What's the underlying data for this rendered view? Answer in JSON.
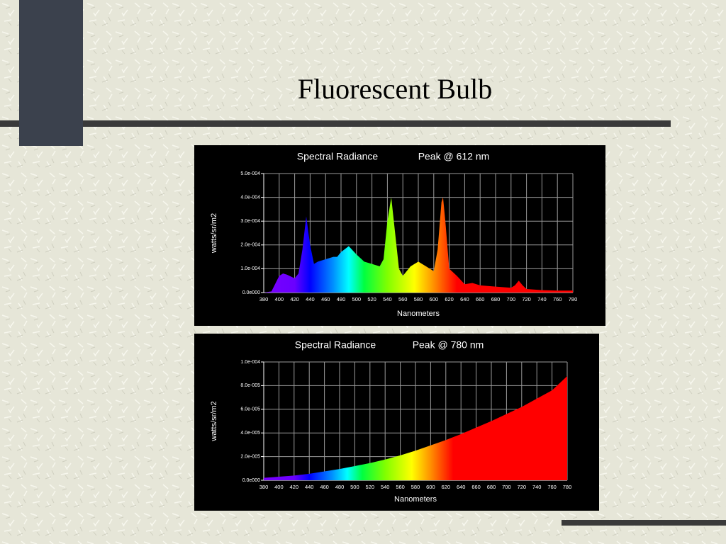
{
  "title": "Fluorescent Bulb",
  "chart_data": [
    {
      "type": "area",
      "title": "Spectral Radiance",
      "subtitle": "Peak @ 612 nm",
      "xlabel": "Nanometers",
      "ylabel": "watts/sr/m2",
      "x": [
        380,
        390,
        400,
        405,
        410,
        420,
        425,
        430,
        435,
        440,
        445,
        450,
        460,
        470,
        475,
        480,
        490,
        500,
        510,
        520,
        530,
        535,
        540,
        545,
        550,
        555,
        560,
        570,
        580,
        590,
        600,
        605,
        610,
        612,
        615,
        620,
        630,
        640,
        650,
        660,
        680,
        700,
        705,
        710,
        715,
        720,
        740,
        760,
        780
      ],
      "values": [
        0,
        5e-06,
        7e-05,
        8e-05,
        7.5e-05,
        6e-05,
        8e-05,
        0.00018,
        0.00032,
        0.0002,
        0.00012,
        0.00013,
        0.00014,
        0.00015,
        0.00015,
        0.00017,
        0.000195,
        0.00016,
        0.00013,
        0.00012,
        0.00011,
        0.00014,
        0.0003,
        0.0004,
        0.00025,
        0.0001,
        7e-05,
        0.00011,
        0.00013,
        0.00011,
        9e-05,
        0.00018,
        0.00038,
        0.0004,
        0.0003,
        0.0001,
        7e-05,
        3.5e-05,
        4e-05,
        3e-05,
        2.5e-05,
        2e-05,
        3e-05,
        5e-05,
        3e-05,
        1.5e-05,
        1e-05,
        8e-06,
        8e-06
      ],
      "xlim": [
        380,
        780
      ],
      "xticks": [
        380,
        400,
        420,
        440,
        460,
        480,
        500,
        520,
        540,
        560,
        580,
        600,
        620,
        640,
        660,
        680,
        700,
        720,
        740,
        760,
        780
      ],
      "ylim": [
        0,
        0.0005
      ],
      "yticks": [
        {
          "value": 0,
          "label": "0.0e000"
        },
        {
          "value": 0.0001,
          "label": "1.0e-004"
        },
        {
          "value": 0.0002,
          "label": "2.0e-004"
        },
        {
          "value": 0.0003,
          "label": "3.0e-004"
        },
        {
          "value": 0.0004,
          "label": "4.0e-004"
        },
        {
          "value": 0.0005,
          "label": "5.0e-004"
        }
      ],
      "grid": true
    },
    {
      "type": "area",
      "title": "Spectral Radiance",
      "subtitle": "Peak @ 780 nm",
      "xlabel": "Nanometers",
      "ylabel": "watts/sr/m2",
      "x": [
        380,
        400,
        420,
        440,
        460,
        480,
        500,
        520,
        540,
        560,
        580,
        600,
        620,
        640,
        660,
        680,
        700,
        720,
        740,
        760,
        780
      ],
      "values": [
        2e-06,
        3e-06,
        4e-06,
        5.5e-06,
        7.5e-06,
        9.5e-06,
        1.2e-05,
        1.45e-05,
        1.75e-05,
        2.1e-05,
        2.5e-05,
        2.95e-05,
        3.4e-05,
        3.9e-05,
        4.45e-05,
        5e-05,
        5.6e-05,
        6.2e-05,
        6.9e-05,
        7.6e-05,
        8.8e-05
      ],
      "xlim": [
        380,
        780
      ],
      "xticks": [
        380,
        400,
        420,
        440,
        460,
        480,
        500,
        520,
        540,
        560,
        580,
        600,
        620,
        640,
        660,
        680,
        700,
        720,
        740,
        760,
        780
      ],
      "ylim": [
        0,
        0.0001
      ],
      "yticks": [
        {
          "value": 0,
          "label": "0.0e000"
        },
        {
          "value": 2e-05,
          "label": "2.0e-005"
        },
        {
          "value": 4e-05,
          "label": "4.0e-005"
        },
        {
          "value": 6e-05,
          "label": "6.0e-005"
        },
        {
          "value": 8e-05,
          "label": "8.0e-005"
        },
        {
          "value": 0.0001,
          "label": "1.0e-004"
        }
      ],
      "grid": true
    }
  ]
}
